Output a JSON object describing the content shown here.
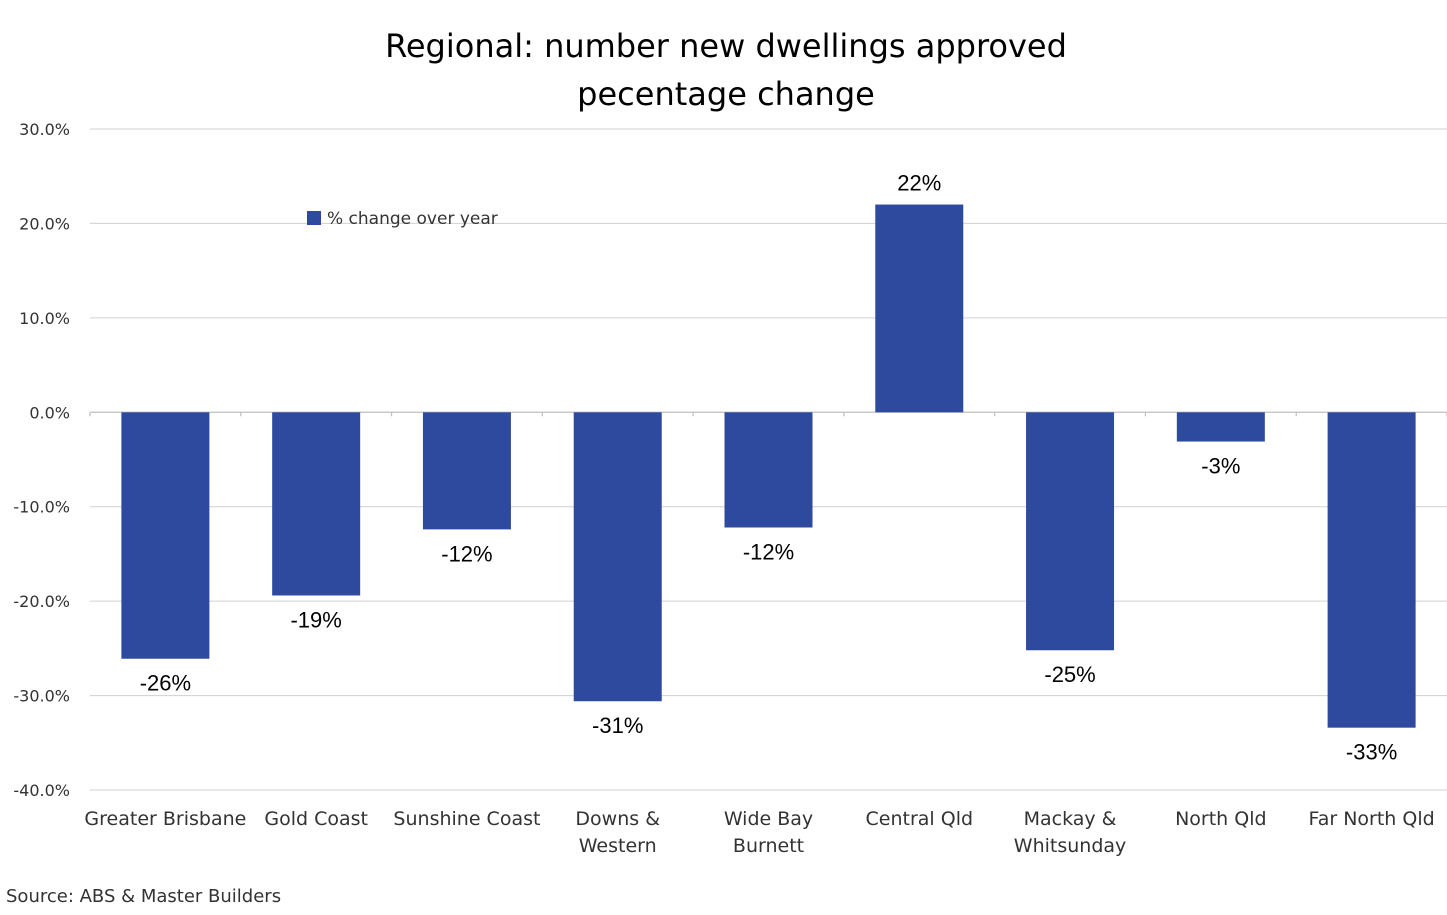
{
  "chart_data": {
    "type": "bar",
    "title": [
      "Regional: number new dwellings approved",
      "pecentage change"
    ],
    "categories": [
      [
        "Greater Brisbane"
      ],
      [
        "Gold Coast"
      ],
      [
        "Sunshine Coast"
      ],
      [
        "Downs &",
        "Western"
      ],
      [
        "Wide Bay",
        "Burnett"
      ],
      [
        "Central Qld"
      ],
      [
        "Mackay &",
        "Whitsunday"
      ],
      [
        "North Qld"
      ],
      [
        "Far North Qld"
      ]
    ],
    "series": [
      {
        "name": "% change over year",
        "color": "#2e4a9e",
        "values": [
          -26.1,
          -19.4,
          -12.4,
          -30.6,
          -12.2,
          22.0,
          -25.2,
          -3.1,
          -33.4
        ],
        "labels": [
          "-26%",
          "-19%",
          "-12%",
          "-31%",
          "-12%",
          "22%",
          "-25%",
          "-3%",
          "-33%"
        ]
      }
    ],
    "ylim": [
      -40,
      30
    ],
    "yticks": [
      30,
      20,
      10,
      0,
      -10,
      -20,
      -30,
      -40
    ],
    "ytick_labels": [
      "30.0%",
      "20.0%",
      "10.0%",
      "0.0%",
      "-10.0%",
      "-20.0%",
      "-30.0%",
      "-40.0%"
    ],
    "grid": true,
    "legend_position": "top-left",
    "source": "Source: ABS & Master Builders"
  }
}
